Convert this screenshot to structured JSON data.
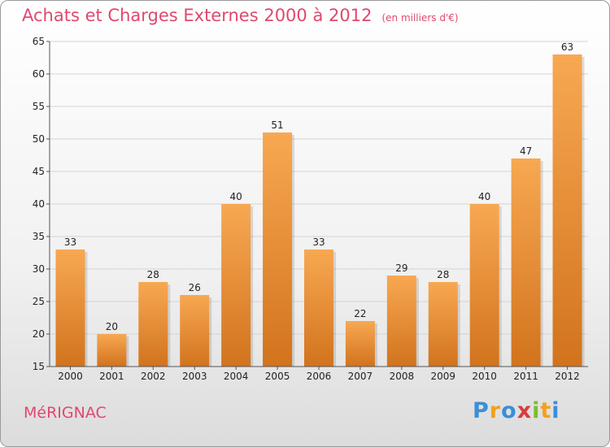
{
  "title": "Achats et Charges Externes 2000 à 2012",
  "unit": "(en milliers d'€)",
  "city": "MéRIGNAC",
  "logo": {
    "letters": [
      "P",
      "r",
      "o",
      "x",
      "i",
      "t",
      "i"
    ],
    "colors": [
      "#3a8fd8",
      "#f3a01b",
      "#3a8fd8",
      "#d93c3c",
      "#7bbf2a",
      "#f3a01b",
      "#3a8fd8"
    ]
  },
  "colors": {
    "bar_top": "#f8a852",
    "bar_bottom": "#d2731d",
    "title": "#e0486f"
  },
  "chart_data": {
    "type": "bar",
    "categories": [
      "2000",
      "2001",
      "2002",
      "2003",
      "2004",
      "2005",
      "2006",
      "2007",
      "2008",
      "2009",
      "2010",
      "2011",
      "2012"
    ],
    "values": [
      33,
      20,
      28,
      26,
      40,
      51,
      33,
      22,
      29,
      28,
      40,
      47,
      63
    ],
    "ylim": [
      15,
      65
    ],
    "yticks": [
      15,
      20,
      25,
      30,
      35,
      40,
      45,
      50,
      55,
      60,
      65
    ],
    "grid": true,
    "xlabel": "",
    "ylabel": ""
  }
}
